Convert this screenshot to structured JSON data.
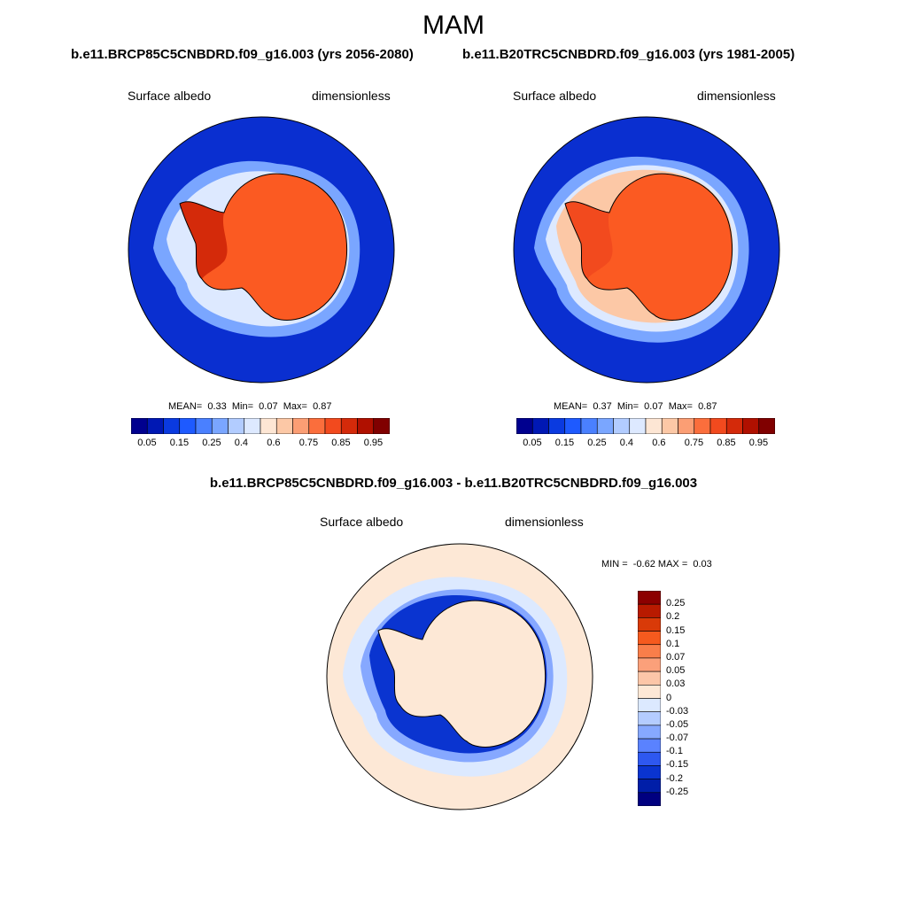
{
  "title": "MAM",
  "panels": [
    {
      "case": "b.e11.BRCP85C5CNBDRD.f09_g16.003 (yrs 2056-2080)",
      "variable": "Surface albedo",
      "units": "dimensionless",
      "stats": {
        "mean_label": "MEAN=",
        "mean": "0.33",
        "min_label": "Min=",
        "min": "0.07",
        "max_label": "Max=",
        "max": "0.87"
      }
    },
    {
      "case": "b.e11.B20TRC5CNBDRD.f09_g16.003 (yrs 1981-2005)",
      "variable": "Surface albedo",
      "units": "dimensionless",
      "stats": {
        "mean_label": "MEAN=",
        "mean": "0.37",
        "min_label": "Min=",
        "min": "0.07",
        "max_label": "Max=",
        "max": "0.87"
      }
    }
  ],
  "colorbar_abs": {
    "ticks": [
      "0.05",
      "0.15",
      "0.25",
      "0.4",
      "0.6",
      "0.75",
      "0.85",
      "0.95"
    ],
    "colors": [
      "#00008f",
      "#0018b4",
      "#0a3ae0",
      "#1e5aff",
      "#4a80ff",
      "#7aa6ff",
      "#b2ccff",
      "#dde9ff",
      "#fde6d4",
      "#fcc8a6",
      "#fb9e74",
      "#fb6e3c",
      "#f24a1e",
      "#d42a0a",
      "#b01000",
      "#800000"
    ]
  },
  "diff": {
    "title": "b.e11.BRCP85C5CNBDRD.f09_g16.003 - b.e11.B20TRC5CNBDRD.f09_g16.003",
    "variable": "Surface albedo",
    "units": "dimensionless",
    "stats": {
      "min_label": "MIN =",
      "min": "-0.62",
      "max_label": "MAX =",
      "max": "0.03"
    },
    "colorbar": {
      "ticks": [
        "0.25",
        "0.2",
        "0.15",
        "0.1",
        "0.07",
        "0.05",
        "0.03",
        "0",
        "-0.03",
        "-0.05",
        "-0.07",
        "-0.1",
        "-0.15",
        "-0.2",
        "-0.25"
      ],
      "colors": [
        "#8c0000",
        "#b81a00",
        "#d93a08",
        "#f55a1e",
        "#f97e4a",
        "#fba07a",
        "#fcc6a8",
        "#fde8d6",
        "#dce9ff",
        "#b4ccff",
        "#86a8ff",
        "#5a82ff",
        "#2e58f0",
        "#0a34d0",
        "#001ea8",
        "#000080"
      ]
    }
  },
  "colors": {
    "ocean_abs": "#0a2fd0",
    "ice_abs": "#fb5a22",
    "diff_bg": "#fde8d6",
    "diff_neg": "#0a34d0"
  }
}
